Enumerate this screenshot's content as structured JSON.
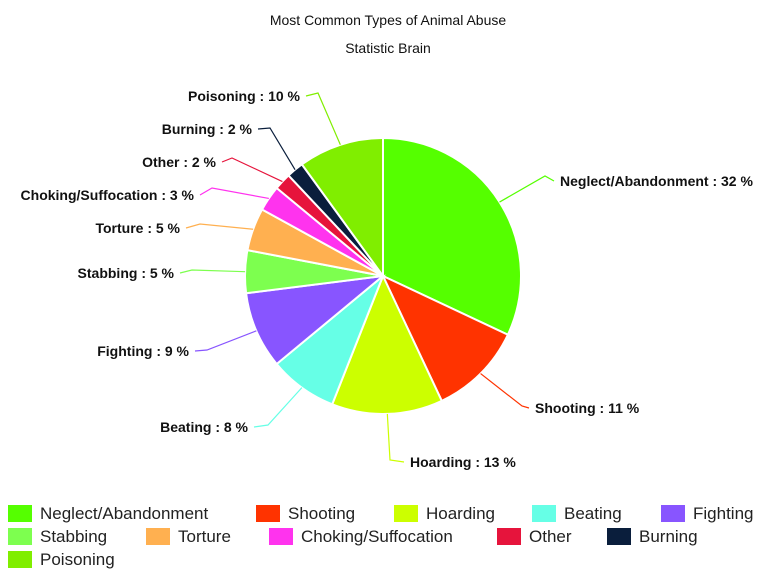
{
  "chart_data": {
    "type": "pie",
    "title": "Most Common Types of Animal Abuse",
    "subtitle": "Statistic Brain",
    "slices": [
      {
        "label": "Neglect/Abandonment",
        "value": 32,
        "display": "Neglect/Abandonment : 32 %",
        "color": "#55ff00"
      },
      {
        "label": "Shooting",
        "value": 11,
        "display": "Shooting : 11 %",
        "color": "#ff3300"
      },
      {
        "label": "Hoarding",
        "value": 13,
        "display": "Hoarding : 13 %",
        "color": "#ccff00"
      },
      {
        "label": "Beating",
        "value": 8,
        "display": "Beating : 8 %",
        "color": "#66ffe6"
      },
      {
        "label": "Fighting",
        "value": 9,
        "display": "Fighting : 9 %",
        "color": "#8855ff"
      },
      {
        "label": "Stabbing",
        "value": 5,
        "display": "Stabbing : 5 %",
        "color": "#7dff4f"
      },
      {
        "label": "Torture",
        "value": 5,
        "display": "Torture : 5 %",
        "color": "#ffb050"
      },
      {
        "label": "Choking/Suffocation",
        "value": 3,
        "display": "Choking/Suffocation : 3 %",
        "color": "#ff33ee"
      },
      {
        "label": "Other",
        "value": 2,
        "display": "Other : 2 %",
        "color": "#e6143c"
      },
      {
        "label": "Burning",
        "value": 2,
        "display": "Burning : 2 %",
        "color": "#0a1e3c"
      },
      {
        "label": "Poisoning",
        "value": 10,
        "display": "Poisoning : 10 %",
        "color": "#80ee00"
      }
    ],
    "legend_position": "bottom"
  }
}
